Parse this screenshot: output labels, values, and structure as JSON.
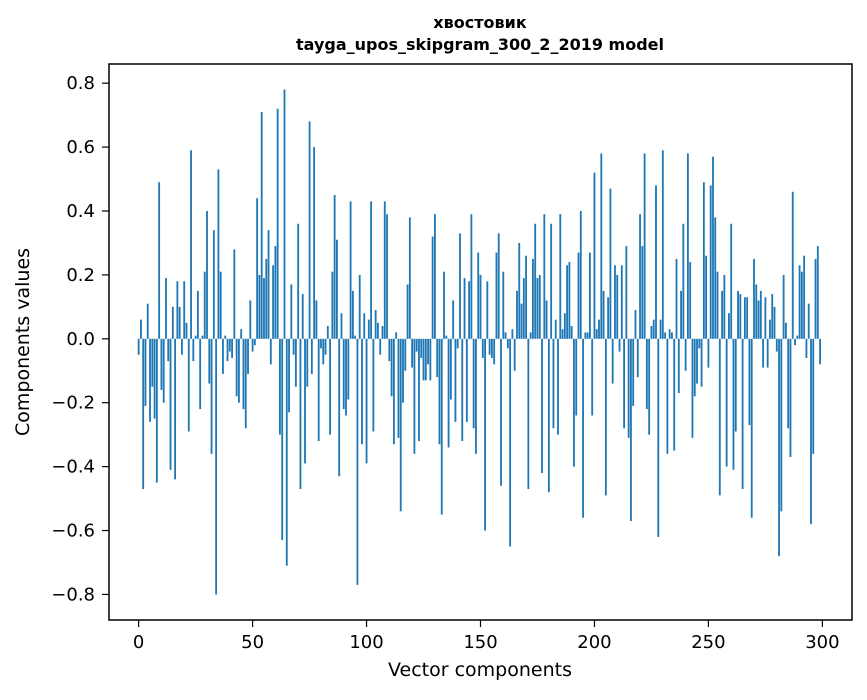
{
  "chart_data": {
    "type": "bar",
    "title": "хвостовик",
    "subtitle": "tayga_upos_skipgram_300_2_2019 model",
    "xlabel": "Vector components",
    "ylabel": "Components values",
    "xlim": [
      -13,
      313
    ],
    "ylim": [
      -0.88,
      0.86
    ],
    "xticks": [
      0,
      50,
      100,
      150,
      200,
      250,
      300
    ],
    "yticks": [
      -0.8,
      -0.6,
      -0.4,
      -0.2,
      0.0,
      0.2,
      0.4,
      0.6,
      0.8
    ],
    "xtick_labels": [
      "0",
      "50",
      "100",
      "150",
      "200",
      "250",
      "300"
    ],
    "ytick_labels": [
      "−0.8",
      "−0.6",
      "−0.4",
      "−0.2",
      "0.0",
      "0.2",
      "0.4",
      "0.6",
      "0.8"
    ],
    "grid": false,
    "bar_color": "#1f77b4",
    "x": [
      0,
      1,
      2,
      3,
      4,
      5,
      6,
      7,
      8,
      9,
      10,
      11,
      12,
      13,
      14,
      15,
      16,
      17,
      18,
      19,
      20,
      21,
      22,
      23,
      24,
      25,
      26,
      27,
      28,
      29,
      30,
      31,
      32,
      33,
      34,
      35,
      36,
      37,
      38,
      39,
      40,
      41,
      42,
      43,
      44,
      45,
      46,
      47,
      48,
      49,
      50,
      51,
      52,
      53,
      54,
      55,
      56,
      57,
      58,
      59,
      60,
      61,
      62,
      63,
      64,
      65,
      66,
      67,
      68,
      69,
      70,
      71,
      72,
      73,
      74,
      75,
      76,
      77,
      78,
      79,
      80,
      81,
      82,
      83,
      84,
      85,
      86,
      87,
      88,
      89,
      90,
      91,
      92,
      93,
      94,
      95,
      96,
      97,
      98,
      99,
      100,
      101,
      102,
      103,
      104,
      105,
      106,
      107,
      108,
      109,
      110,
      111,
      112,
      113,
      114,
      115,
      116,
      117,
      118,
      119,
      120,
      121,
      122,
      123,
      124,
      125,
      126,
      127,
      128,
      129,
      130,
      131,
      132,
      133,
      134,
      135,
      136,
      137,
      138,
      139,
      140,
      141,
      142,
      143,
      144,
      145,
      146,
      147,
      148,
      149,
      150,
      151,
      152,
      153,
      154,
      155,
      156,
      157,
      158,
      159,
      160,
      161,
      162,
      163,
      164,
      165,
      166,
      167,
      168,
      169,
      170,
      171,
      172,
      173,
      174,
      175,
      176,
      177,
      178,
      179,
      180,
      181,
      182,
      183,
      184,
      185,
      186,
      187,
      188,
      189,
      190,
      191,
      192,
      193,
      194,
      195,
      196,
      197,
      198,
      199,
      200,
      201,
      202,
      203,
      204,
      205,
      206,
      207,
      208,
      209,
      210,
      211,
      212,
      213,
      214,
      215,
      216,
      217,
      218,
      219,
      220,
      221,
      222,
      223,
      224,
      225,
      226,
      227,
      228,
      229,
      230,
      231,
      232,
      233,
      234,
      235,
      236,
      237,
      238,
      239,
      240,
      241,
      242,
      243,
      244,
      245,
      246,
      247,
      248,
      249,
      250,
      251,
      252,
      253,
      254,
      255,
      256,
      257,
      258,
      259,
      260,
      261,
      262,
      263,
      264,
      265,
      266,
      267,
      268,
      269,
      270,
      271,
      272,
      273,
      274,
      275,
      276,
      277,
      278,
      279,
      280,
      281,
      282,
      283,
      284,
      285,
      286,
      287,
      288,
      289,
      290,
      291,
      292,
      293,
      294,
      295,
      296,
      297,
      298,
      299
    ],
    "values": [
      -0.05,
      0.06,
      -0.47,
      -0.21,
      0.11,
      -0.26,
      -0.15,
      -0.25,
      -0.45,
      0.49,
      -0.16,
      -0.2,
      0.19,
      -0.07,
      -0.41,
      0.1,
      -0.44,
      0.18,
      0.1,
      -0.05,
      0.18,
      0.05,
      -0.29,
      0.59,
      -0.07,
      0.01,
      0.15,
      -0.22,
      0.01,
      0.21,
      0.4,
      -0.14,
      -0.36,
      0.34,
      -0.8,
      0.53,
      0.21,
      -0.11,
      0.01,
      -0.07,
      -0.04,
      -0.06,
      0.28,
      -0.18,
      -0.2,
      0.03,
      -0.22,
      -0.28,
      -0.11,
      0.12,
      -0.04,
      -0.02,
      0.44,
      0.2,
      0.71,
      0.19,
      0.25,
      0.34,
      -0.08,
      0.23,
      0.29,
      0.72,
      -0.3,
      -0.63,
      0.78,
      -0.71,
      -0.23,
      0.17,
      -0.05,
      -0.15,
      0.36,
      -0.47,
      0.14,
      -0.39,
      -0.15,
      0.68,
      -0.11,
      0.6,
      0.12,
      -0.32,
      -0.03,
      -0.08,
      -0.05,
      0.04,
      -0.3,
      0.21,
      0.45,
      0.31,
      -0.43,
      0.08,
      -0.22,
      -0.24,
      -0.19,
      0.43,
      0.15,
      0.01,
      -0.77,
      0.2,
      -0.33,
      0.08,
      -0.39,
      0.06,
      0.43,
      -0.29,
      0.09,
      0.05,
      -0.05,
      0.04,
      0.43,
      0.39,
      -0.07,
      -0.18,
      -0.33,
      0.02,
      -0.31,
      -0.54,
      -0.2,
      -0.1,
      0.17,
      0.38,
      -0.09,
      -0.36,
      -0.04,
      -0.32,
      -0.06,
      -0.13,
      -0.13,
      -0.08,
      -0.13,
      0.32,
      0.39,
      -0.12,
      -0.33,
      -0.55,
      0.21,
      0.01,
      -0.34,
      -0.19,
      0.12,
      -0.26,
      -0.03,
      0.33,
      -0.32,
      0.19,
      -0.26,
      0.18,
      0.39,
      -0.28,
      -0.36,
      0.27,
      0.2,
      -0.06,
      -0.6,
      0.18,
      -0.05,
      -0.06,
      -0.08,
      0.27,
      0.33,
      -0.46,
      0.21,
      0.02,
      -0.03,
      -0.65,
      0.03,
      -0.1,
      0.15,
      0.3,
      0.11,
      0.19,
      0.26,
      -0.47,
      0.02,
      0.25,
      0.36,
      0.19,
      0.2,
      -0.42,
      0.39,
      0.12,
      -0.48,
      0.36,
      -0.28,
      0.06,
      -0.3,
      0.39,
      0.03,
      0.08,
      0.23,
      0.24,
      0.04,
      -0.4,
      -0.24,
      0.27,
      0.4,
      -0.56,
      0.02,
      0.02,
      0.27,
      -0.24,
      0.52,
      0.03,
      0.06,
      0.58,
      0.15,
      -0.49,
      0.13,
      0.47,
      -0.14,
      0.23,
      0.2,
      -0.04,
      0.23,
      -0.28,
      0.29,
      -0.31,
      -0.57,
      -0.21,
      0.09,
      -0.12,
      0.39,
      0.29,
      0.58,
      -0.22,
      -0.3,
      0.04,
      0.06,
      0.48,
      -0.62,
      0.06,
      0.59,
      0.02,
      -0.36,
      0.03,
      0.02,
      -0.35,
      0.25,
      -0.17,
      0.15,
      0.36,
      -0.1,
      0.58,
      0.24,
      -0.31,
      -0.18,
      -0.14,
      -0.03,
      -0.15,
      0.49,
      0.26,
      -0.09,
      0.48,
      0.57,
      0.38,
      0.21,
      -0.49,
      0.15,
      0.2,
      -0.4,
      0.08,
      0.36,
      -0.41,
      -0.29,
      0.15,
      0.14,
      -0.47,
      0.13,
      0.13,
      -0.27,
      -0.56,
      0.25,
      0.17,
      0.12,
      0.15,
      -0.09,
      0.13,
      -0.09,
      0.06,
      0.14,
      0.1,
      -0.04,
      -0.68,
      -0.54,
      0.2,
      0.05,
      -0.28,
      -0.37,
      0.46,
      -0.02,
      0.01,
      0.23,
      0.21,
      0.26,
      -0.06,
      0.11,
      -0.58,
      -0.36,
      0.25,
      0.29,
      -0.08
    ]
  }
}
